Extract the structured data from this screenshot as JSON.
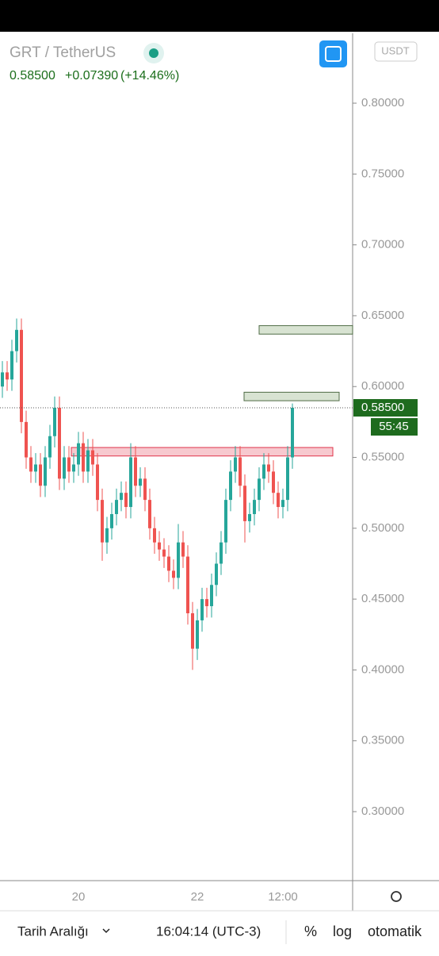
{
  "header": {
    "symbol": "GRT / TetherUS",
    "price": "0.58500",
    "change": "+0.07390",
    "change_pct": "(+14.46%)",
    "currency": "USDT"
  },
  "toolbar": {
    "range": "Tarih Aralığı",
    "time": "16:04:14 (UTC-3)",
    "percent": "%",
    "log": "log",
    "auto": "otomatik"
  },
  "chart_data": {
    "type": "candlestick",
    "categories": [
      null,
      null,
      null,
      null,
      null,
      null,
      null,
      null,
      null,
      null,
      null,
      null,
      null,
      null,
      null,
      null,
      "20",
      null,
      null,
      null,
      null,
      null,
      null,
      null,
      null,
      null,
      null,
      null,
      null,
      null,
      null,
      null,
      null,
      null,
      null,
      null,
      null,
      null,
      null,
      null,
      null,
      "22",
      null,
      null,
      null,
      null,
      null,
      null,
      null,
      null,
      null,
      null,
      null,
      null,
      null,
      null,
      null,
      null,
      null,
      "12:00",
      null,
      null
    ],
    "open": [
      0.6,
      0.61,
      0.605,
      0.625,
      0.64,
      0.575,
      0.55,
      0.54,
      0.545,
      0.53,
      0.55,
      0.565,
      0.585,
      0.535,
      0.55,
      0.54,
      0.545,
      0.56,
      0.54,
      0.555,
      0.545,
      0.52,
      0.49,
      0.5,
      0.51,
      0.52,
      0.525,
      0.515,
      0.55,
      0.53,
      0.535,
      0.52,
      0.5,
      0.49,
      0.485,
      0.48,
      0.47,
      0.465,
      0.49,
      0.48,
      0.44,
      0.415,
      0.435,
      0.45,
      0.445,
      0.46,
      0.475,
      0.49,
      0.52,
      0.54,
      0.55,
      0.53,
      0.505,
      0.51,
      0.52,
      0.535,
      0.545,
      0.54,
      0.525,
      0.515,
      0.52,
      0.55
    ],
    "high": [
      0.618,
      0.618,
      0.633,
      0.648,
      0.648,
      0.583,
      0.558,
      0.553,
      0.553,
      0.558,
      0.573,
      0.593,
      0.593,
      0.558,
      0.558,
      0.553,
      0.568,
      0.568,
      0.563,
      0.563,
      0.553,
      0.528,
      0.508,
      0.518,
      0.528,
      0.533,
      0.533,
      0.56,
      0.558,
      0.543,
      0.543,
      0.528,
      0.508,
      0.498,
      0.493,
      0.488,
      0.478,
      0.503,
      0.498,
      0.488,
      0.448,
      0.443,
      0.458,
      0.458,
      0.468,
      0.483,
      0.498,
      0.528,
      0.548,
      0.558,
      0.558,
      0.538,
      0.518,
      0.528,
      0.543,
      0.553,
      0.553,
      0.548,
      0.533,
      0.528,
      0.558,
      0.588
    ],
    "low": [
      0.592,
      0.597,
      0.597,
      0.617,
      0.567,
      0.542,
      0.532,
      0.532,
      0.522,
      0.522,
      0.542,
      0.557,
      0.527,
      0.527,
      0.532,
      0.532,
      0.537,
      0.532,
      0.532,
      0.537,
      0.512,
      0.477,
      0.482,
      0.492,
      0.502,
      0.512,
      0.507,
      0.507,
      0.522,
      0.522,
      0.512,
      0.492,
      0.482,
      0.477,
      0.472,
      0.462,
      0.457,
      0.457,
      0.472,
      0.432,
      0.4,
      0.407,
      0.427,
      0.437,
      0.437,
      0.452,
      0.467,
      0.482,
      0.512,
      0.532,
      0.522,
      0.49,
      0.497,
      0.502,
      0.512,
      0.527,
      0.532,
      0.517,
      0.507,
      0.507,
      0.512,
      0.542
    ],
    "close": [
      0.61,
      0.605,
      0.625,
      0.64,
      0.575,
      0.55,
      0.54,
      0.545,
      0.53,
      0.55,
      0.565,
      0.585,
      0.535,
      0.55,
      0.54,
      0.545,
      0.56,
      0.54,
      0.555,
      0.545,
      0.52,
      0.49,
      0.5,
      0.51,
      0.52,
      0.525,
      0.515,
      0.55,
      0.53,
      0.535,
      0.52,
      0.5,
      0.49,
      0.485,
      0.48,
      0.47,
      0.465,
      0.49,
      0.48,
      0.44,
      0.415,
      0.435,
      0.45,
      0.445,
      0.46,
      0.475,
      0.49,
      0.52,
      0.54,
      0.55,
      0.53,
      0.505,
      0.51,
      0.52,
      0.535,
      0.545,
      0.54,
      0.525,
      0.515,
      0.52,
      0.55,
      0.585
    ],
    "up_color": "#26a69a",
    "down_color": "#ef5350",
    "ylim": [
      0.2513,
      0.8493
    ],
    "yticks": [
      {
        "value": 0.8,
        "label": "0.80000"
      },
      {
        "value": 0.75,
        "label": "0.75000"
      },
      {
        "value": 0.7,
        "label": "0.70000"
      },
      {
        "value": 0.65,
        "label": "0.65000"
      },
      {
        "value": 0.6,
        "label": "0.60000"
      },
      {
        "value": 0.55,
        "label": "0.55000"
      },
      {
        "value": 0.5,
        "label": "0.50000"
      },
      {
        "value": 0.45,
        "label": "0.45000"
      },
      {
        "value": 0.4,
        "label": "0.40000"
      },
      {
        "value": 0.35,
        "label": "0.35000"
      },
      {
        "value": 0.3,
        "label": "0.30000"
      }
    ],
    "last_price": {
      "value": 0.585,
      "label": "0.58500"
    },
    "countdown": "55:45",
    "zones": [
      {
        "top": 0.643,
        "bottom": 0.637,
        "color": "#d8e3d2",
        "border": "#4f6b45"
      },
      {
        "top": 0.596,
        "bottom": 0.59,
        "color": "#d8e3d2",
        "border": "#4f6b45"
      },
      {
        "top": 0.557,
        "bottom": 0.551,
        "color": "#f7c9cf",
        "border": "#e0344a"
      }
    ]
  }
}
